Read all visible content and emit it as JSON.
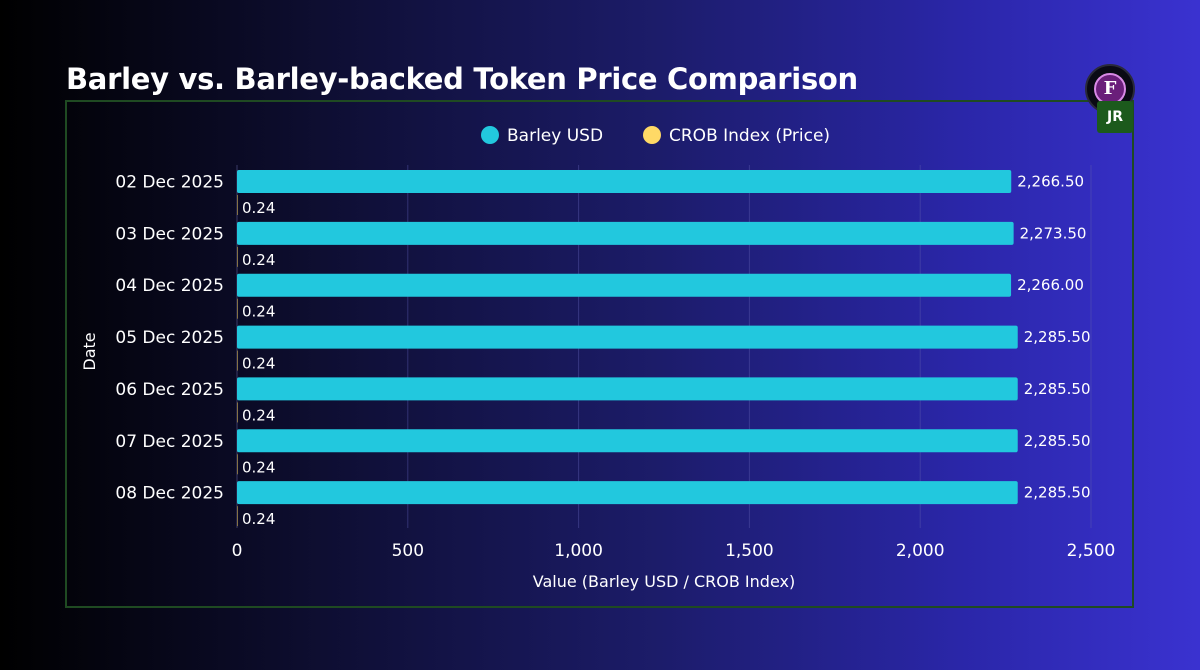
{
  "brand": {
    "logo_letter": "F",
    "badge_text": "JR"
  },
  "chart_data": {
    "type": "bar",
    "orientation": "horizontal",
    "title": "Barley vs. Barley-backed Token Price Comparison",
    "xlabel": "Value (Barley USD / CROB Index)",
    "ylabel": "Date",
    "xlim": [
      0,
      2500
    ],
    "xticks": [
      0,
      500,
      1000,
      1500,
      2000,
      2500
    ],
    "xtick_labels": [
      "0",
      "500",
      "1,000",
      "1,500",
      "2,000",
      "2,500"
    ],
    "grid": "vertical",
    "legend_position": "top-center",
    "categories": [
      "02 Dec 2025",
      "03 Dec 2025",
      "04 Dec 2025",
      "05 Dec 2025",
      "06 Dec 2025",
      "07 Dec 2025",
      "08 Dec 2025"
    ],
    "series": [
      {
        "name": "Barley USD",
        "color": "#22c8de",
        "values": [
          2266.5,
          2273.5,
          2266.0,
          2285.5,
          2285.5,
          2285.5,
          2285.5
        ],
        "labels": [
          "2,266.50",
          "2,273.50",
          "2,266.00",
          "2,285.50",
          "2,285.50",
          "2,285.50",
          "2,285.50"
        ]
      },
      {
        "name": "CROB Index (Price)",
        "color": "#ffd966",
        "values": [
          0.24,
          0.24,
          0.24,
          0.24,
          0.24,
          0.24,
          0.24
        ],
        "labels": [
          "0.24",
          "0.24",
          "0.24",
          "0.24",
          "0.24",
          "0.24",
          "0.24"
        ]
      }
    ]
  }
}
